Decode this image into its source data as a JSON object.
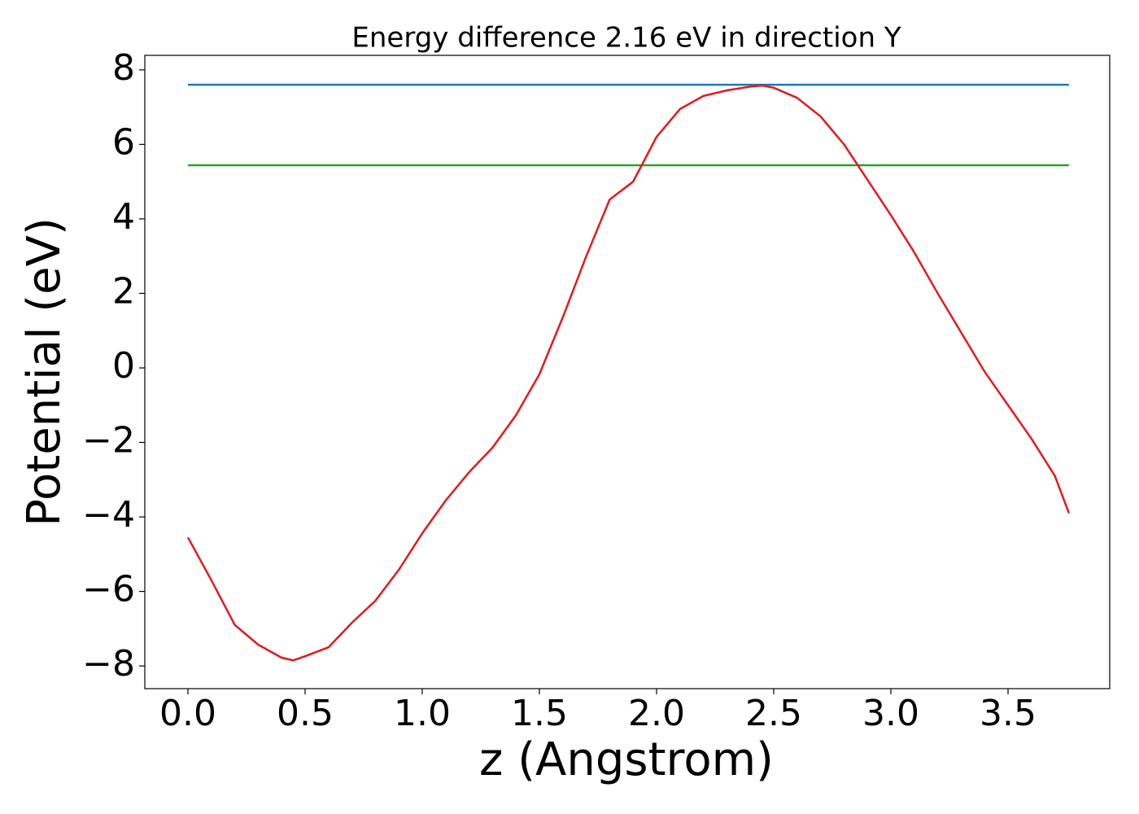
{
  "chart_data": {
    "type": "line",
    "title": "Energy difference 2.16 eV in direction Y",
    "xlabel": "z (Angstrom)",
    "ylabel": "Potential (eV)",
    "xlim": [
      -0.184,
      3.934
    ],
    "ylim": [
      -8.61,
      8.39
    ],
    "xticks": [
      {
        "value": 0,
        "label": "0.0"
      },
      0.5,
      {
        "value": 1,
        "label": "1.0"
      },
      1.5,
      {
        "value": 2,
        "label": "2.0"
      },
      2.5,
      {
        "value": 3,
        "label": "3.0"
      },
      3.5
    ],
    "yticks": [
      {
        "value": -8,
        "label": "−8"
      },
      {
        "value": -6,
        "label": "−6"
      },
      {
        "value": -4,
        "label": "−4"
      },
      {
        "value": -2,
        "label": "−2"
      },
      0,
      2,
      4,
      6,
      8
    ],
    "series": [
      {
        "color": "#1f77b4",
        "x": [
          0,
          3.76
        ],
        "values": [
          7.6,
          7.6
        ]
      },
      {
        "color": "#2ca02c",
        "x": [
          0,
          3.76
        ],
        "values": [
          5.44,
          5.44
        ]
      },
      {
        "color": "#e41a1c",
        "x": [
          0,
          0.1,
          0.2,
          0.3,
          0.4,
          0.45,
          0.5,
          0.6,
          0.7,
          0.8,
          0.9,
          1.0,
          1.1,
          1.2,
          1.3,
          1.4,
          1.5,
          1.6,
          1.7,
          1.8,
          1.9,
          2.0,
          2.1,
          2.2,
          2.3,
          2.4,
          2.45,
          2.5,
          2.6,
          2.7,
          2.8,
          2.9,
          3.0,
          3.1,
          3.2,
          3.3,
          3.4,
          3.5,
          3.6,
          3.7,
          3.76
        ],
        "values": [
          -4.55,
          -5.7,
          -6.9,
          -7.43,
          -7.78,
          -7.85,
          -7.74,
          -7.5,
          -6.84,
          -6.25,
          -5.42,
          -4.44,
          -3.56,
          -2.8,
          -2.14,
          -1.27,
          -0.17,
          1.36,
          3.0,
          4.52,
          5.0,
          6.2,
          6.95,
          7.3,
          7.45,
          7.55,
          7.58,
          7.52,
          7.25,
          6.75,
          6.0,
          5.05,
          4.1,
          3.1,
          2.0,
          0.95,
          -0.1,
          -1.0,
          -1.9,
          -2.9,
          -3.9
        ]
      }
    ]
  }
}
